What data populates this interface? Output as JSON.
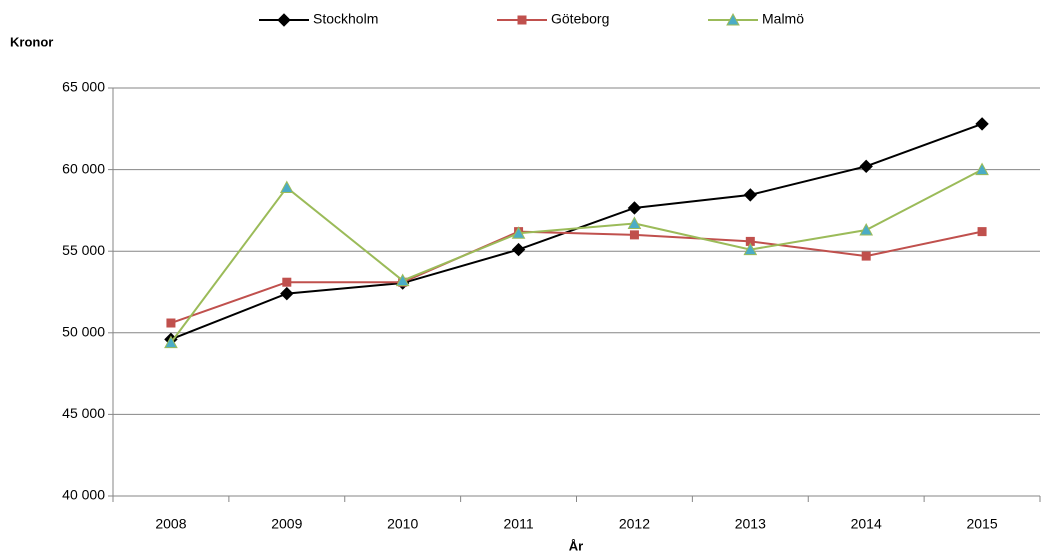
{
  "chart_data": {
    "type": "line",
    "y_label": "Kronor",
    "x_label": "År",
    "categories": [
      "2008",
      "2009",
      "2010",
      "2011",
      "2012",
      "2013",
      "2014",
      "2015"
    ],
    "series": [
      {
        "name": "Stockholm",
        "color": "#000000",
        "marker": "diamond",
        "marker_color": "#000000",
        "values": [
          49600,
          52400,
          53050,
          55100,
          57650,
          58450,
          60200,
          62800
        ]
      },
      {
        "name": "Göteborg",
        "color": "#c0504d",
        "marker": "square",
        "marker_color": "#c0504d",
        "values": [
          50600,
          53100,
          53100,
          56200,
          56000,
          55600,
          54700,
          56200
        ]
      },
      {
        "name": "Malmö",
        "color": "#9bbb59",
        "marker": "triangle",
        "marker_color": "#4bacc6",
        "values": [
          49400,
          58900,
          53200,
          56100,
          56700,
          55100,
          56300,
          60000
        ]
      }
    ],
    "ylim": [
      40000,
      65000
    ],
    "yticks": [
      {
        "value": 40000,
        "label": "40 000"
      },
      {
        "value": 45000,
        "label": "45 000"
      },
      {
        "value": 50000,
        "label": "50 000"
      },
      {
        "value": 55000,
        "label": "55 000"
      },
      {
        "value": 60000,
        "label": "60 000"
      },
      {
        "value": 65000,
        "label": "65 000"
      }
    ],
    "grid": true,
    "legend": "top"
  }
}
